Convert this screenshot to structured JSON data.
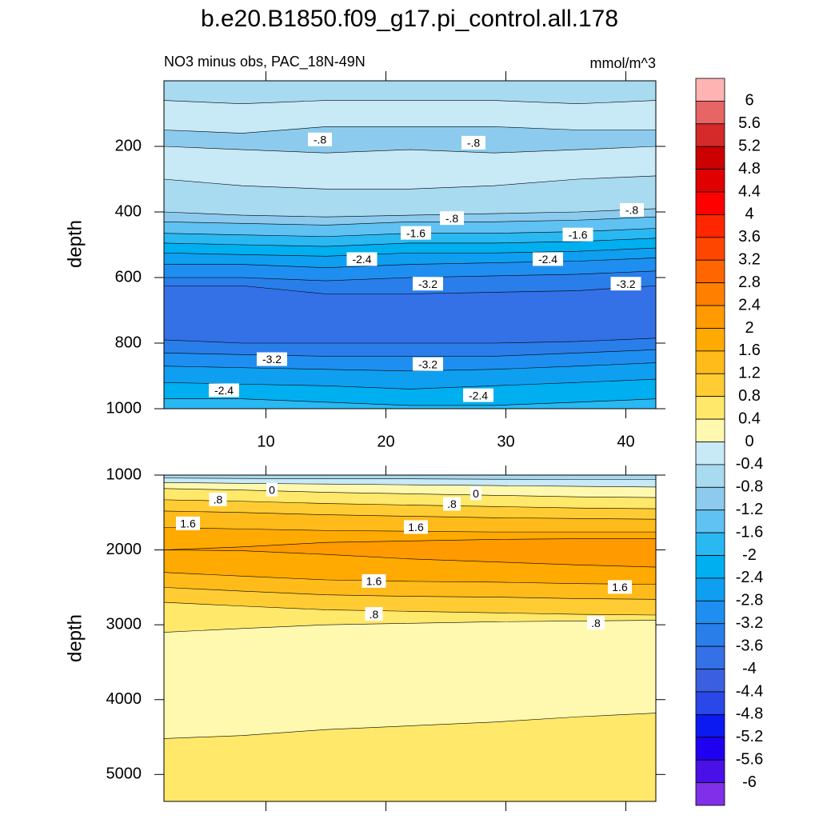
{
  "title": "b.e20.B1850.f09_g17.pi_control.all.178",
  "subtitle": "NO3 minus obs, PAC_18N-49N",
  "units": "mmol/m^3",
  "colorbar": {
    "levels": [
      6,
      5.6,
      5.2,
      4.8,
      4.4,
      4,
      3.6,
      3.2,
      2.8,
      2.4,
      2,
      1.6,
      1.2,
      0.8,
      0.4,
      0,
      -0.4,
      -0.8,
      -1.2,
      -1.6,
      -2,
      -2.4,
      -2.8,
      -3.2,
      -3.6,
      -4,
      -4.4,
      -4.8,
      -5.2,
      -5.6,
      -6
    ],
    "colors": [
      "#ffb4b4",
      "#e76565",
      "#d42a2a",
      "#cc0000",
      "#e00000",
      "#ff0000",
      "#ff2600",
      "#ff4600",
      "#ff6600",
      "#ff8000",
      "#ff9a00",
      "#ffaa00",
      "#ffbb1a",
      "#ffcc33",
      "#ffe86a",
      "#fff9b0",
      "#c8e9f6",
      "#a8daf0",
      "#8ccbee",
      "#60c2f2",
      "#2ab8f2",
      "#00aff0",
      "#0f9ff0",
      "#1e8ff0",
      "#2a7eea",
      "#3470e6",
      "#3a60e0",
      "#2a48e8",
      "#0a1af0",
      "#2000f0",
      "#4a10e8",
      "#8030e8"
    ]
  },
  "chart_data": [
    {
      "type": "contour",
      "ylabel": "depth",
      "xlim": [
        1.5,
        42.5
      ],
      "ylim": [
        0,
        1000
      ],
      "xticks": [
        10,
        20,
        30,
        40
      ],
      "yticks": [
        200,
        400,
        600,
        800,
        1000
      ],
      "xtick_labels": true,
      "x": [
        1.5,
        8,
        15,
        22,
        29,
        36,
        42.5
      ],
      "bands": [
        {
          "value": -0.6,
          "bottom": [
            60,
            70,
            60,
            60,
            60,
            70,
            60
          ]
        },
        {
          "value": -0.2,
          "bottom": [
            150,
            160,
            140,
            140,
            140,
            150,
            150
          ]
        },
        {
          "value": -1.0,
          "bottom": [
            200,
            210,
            220,
            210,
            220,
            210,
            200
          ]
        },
        {
          "value": -0.2,
          "bottom": [
            300,
            320,
            330,
            330,
            320,
            300,
            290
          ]
        },
        {
          "value": -0.6,
          "bottom": [
            400,
            410,
            415,
            410,
            405,
            400,
            390
          ]
        },
        {
          "value": -1.0,
          "bottom": [
            430,
            435,
            440,
            430,
            430,
            425,
            415
          ]
        },
        {
          "value": -1.4,
          "bottom": [
            465,
            470,
            475,
            465,
            465,
            460,
            450
          ]
        },
        {
          "value": -1.8,
          "bottom": [
            495,
            500,
            505,
            495,
            495,
            490,
            480
          ]
        },
        {
          "value": -2.2,
          "bottom": [
            525,
            530,
            535,
            525,
            525,
            520,
            510
          ]
        },
        {
          "value": -2.6,
          "bottom": [
            560,
            560,
            570,
            560,
            555,
            550,
            540
          ]
        },
        {
          "value": -3.0,
          "bottom": [
            600,
            600,
            610,
            600,
            595,
            590,
            580
          ]
        },
        {
          "value": -3.4,
          "bottom": [
            625,
            625,
            650,
            650,
            645,
            640,
            625
          ]
        },
        {
          "value": -3.8,
          "bottom": [
            790,
            800,
            800,
            800,
            800,
            795,
            785
          ]
        },
        {
          "value": -3.4,
          "bottom": [
            830,
            835,
            840,
            840,
            840,
            830,
            820
          ]
        },
        {
          "value": -3.0,
          "bottom": [
            870,
            875,
            880,
            885,
            880,
            870,
            860
          ]
        },
        {
          "value": -2.6,
          "bottom": [
            920,
            925,
            930,
            940,
            930,
            920,
            910
          ]
        },
        {
          "value": -2.2,
          "bottom": [
            970,
            970,
            980,
            990,
            990,
            980,
            970
          ]
        },
        {
          "value": -1.8,
          "bottom": [
            1000,
            1000,
            1000,
            1000,
            1000,
            1000,
            1000
          ]
        }
      ],
      "labels": [
        {
          "text": "-.8",
          "x": 14.5,
          "y": 180
        },
        {
          "text": "-.8",
          "x": 27.3,
          "y": 190
        },
        {
          "text": "-.8",
          "x": 25.5,
          "y": 420
        },
        {
          "text": "-.8",
          "x": 40.5,
          "y": 395
        },
        {
          "text": "-1.6",
          "x": 22.5,
          "y": 465
        },
        {
          "text": "-1.6",
          "x": 36,
          "y": 470
        },
        {
          "text": "-2.4",
          "x": 18,
          "y": 545
        },
        {
          "text": "-2.4",
          "x": 33.5,
          "y": 545
        },
        {
          "text": "-3.2",
          "x": 23.5,
          "y": 620
        },
        {
          "text": "-3.2",
          "x": 40,
          "y": 620
        },
        {
          "text": "-3.2",
          "x": 10.5,
          "y": 850
        },
        {
          "text": "-3.2",
          "x": 23.5,
          "y": 865
        },
        {
          "text": "-2.4",
          "x": 6.5,
          "y": 945
        },
        {
          "text": "-2.4",
          "x": 27.7,
          "y": 960
        }
      ]
    },
    {
      "type": "contour",
      "ylabel": "depth",
      "xlim": [
        1.5,
        42.5
      ],
      "ylim": [
        1000,
        5360
      ],
      "xticks": [
        10,
        20,
        30,
        40
      ],
      "yticks": [
        1000,
        2000,
        3000,
        4000,
        5000
      ],
      "xtick_labels": false,
      "x": [
        1.5,
        8,
        15,
        22,
        29,
        36,
        42.5
      ],
      "bands": [
        {
          "value": -0.6,
          "bottom": [
            1040,
            1045,
            1050,
            1050,
            1055,
            1060,
            1060
          ]
        },
        {
          "value": -0.2,
          "bottom": [
            1100,
            1110,
            1120,
            1130,
            1140,
            1150,
            1160
          ]
        },
        {
          "value": 0.2,
          "bottom": [
            1180,
            1200,
            1230,
            1250,
            1270,
            1290,
            1300
          ]
        },
        {
          "value": 0.6,
          "bottom": [
            1330,
            1350,
            1380,
            1400,
            1420,
            1440,
            1450
          ]
        },
        {
          "value": 1.0,
          "bottom": [
            1480,
            1500,
            1530,
            1550,
            1570,
            1580,
            1590
          ]
        },
        {
          "value": 1.4,
          "bottom": [
            1700,
            1720,
            1740,
            1750,
            1760,
            1760,
            1760
          ]
        },
        {
          "value": 1.8,
          "bottom": [
            2000,
            1960,
            1900,
            1880,
            1860,
            1850,
            1850
          ]
        },
        {
          "value": 2.2,
          "bottom": [
            2000,
            2010,
            2060,
            2120,
            2160,
            2200,
            2230
          ]
        },
        {
          "value": 1.8,
          "bottom": [
            2300,
            2350,
            2400,
            2420,
            2430,
            2450,
            2460
          ]
        },
        {
          "value": 1.4,
          "bottom": [
            2500,
            2550,
            2600,
            2620,
            2630,
            2650,
            2660
          ]
        },
        {
          "value": 1.0,
          "bottom": [
            2700,
            2750,
            2800,
            2820,
            2840,
            2860,
            2870
          ]
        },
        {
          "value": 0.6,
          "bottom": [
            3100,
            3050,
            3000,
            2980,
            2960,
            2950,
            2940
          ]
        },
        {
          "value": 0.2,
          "bottom": [
            4520,
            4480,
            4400,
            4350,
            4300,
            4230,
            4180
          ]
        },
        {
          "value": 0.6,
          "bottom": [
            5360,
            5360,
            5360,
            5360,
            5360,
            5360,
            5360
          ]
        }
      ],
      "labels": [
        {
          "text": "0",
          "x": 10.5,
          "y": 1200
        },
        {
          "text": ".8",
          "x": 6,
          "y": 1330
        },
        {
          "text": "1.6",
          "x": 3.5,
          "y": 1650
        },
        {
          "text": "0",
          "x": 27.5,
          "y": 1250
        },
        {
          "text": ".8",
          "x": 25.5,
          "y": 1390
        },
        {
          "text": "1.6",
          "x": 22.5,
          "y": 1700
        },
        {
          "text": "1.6",
          "x": 19,
          "y": 2420
        },
        {
          "text": ".8",
          "x": 19,
          "y": 2860
        },
        {
          "text": "1.6",
          "x": 39.5,
          "y": 2500
        },
        {
          "text": ".8",
          "x": 37.5,
          "y": 2980
        }
      ]
    }
  ]
}
